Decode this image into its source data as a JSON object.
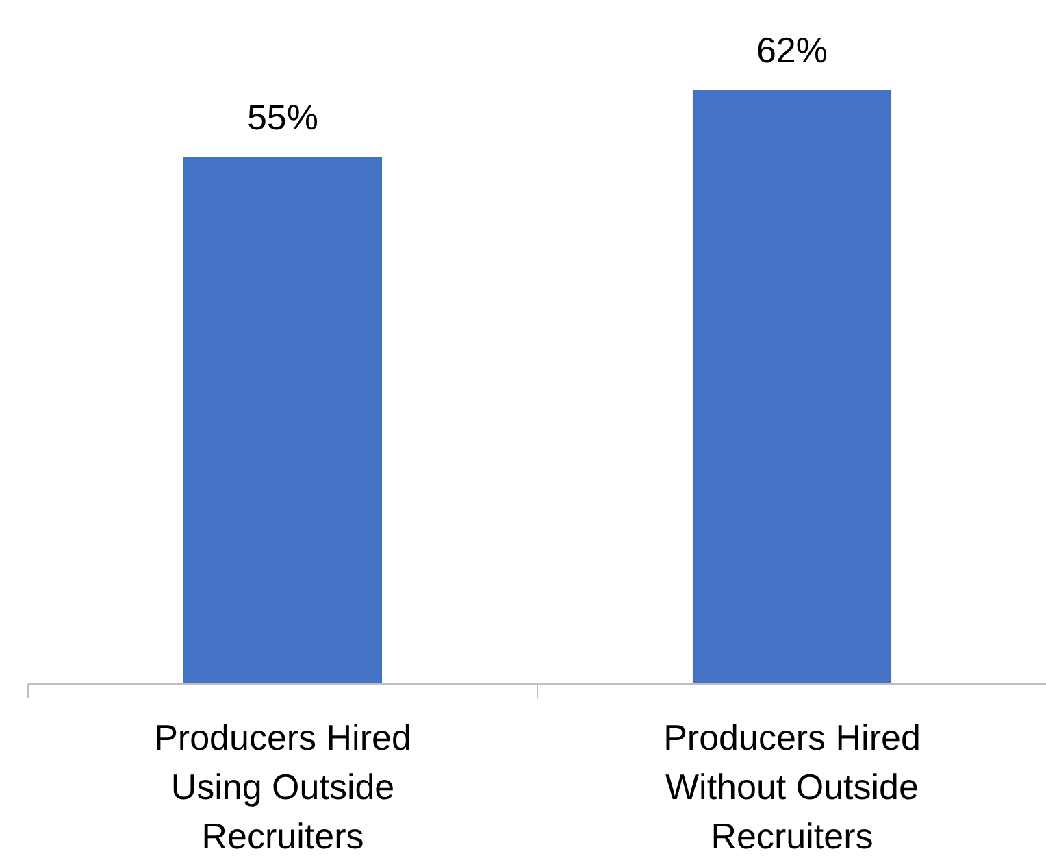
{
  "chart_data": {
    "type": "bar",
    "categories": [
      "Producers Hired Using Outside Recruiters",
      "Producers Hired Without Outside Recruiters"
    ],
    "values": [
      55,
      62
    ],
    "color": "#4472c4",
    "data_labels": true,
    "value_labels": [
      "55%",
      "62%"
    ]
  }
}
